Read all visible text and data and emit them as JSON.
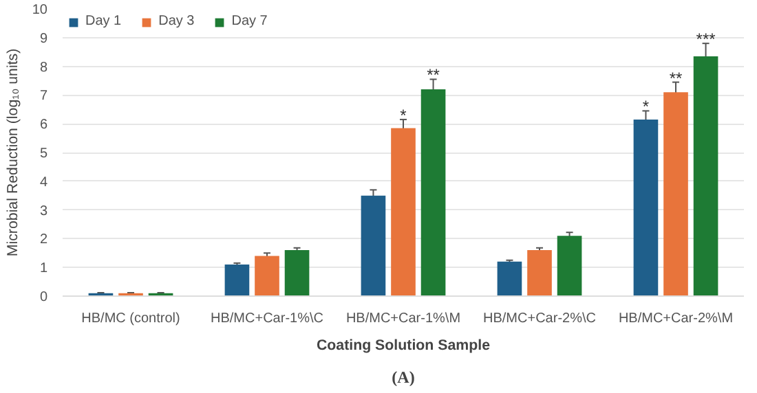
{
  "chart_data": {
    "type": "bar",
    "categories": [
      "HB/MC (control)",
      "HB/MC+Car-1%\\C",
      "HB/MC+Car-1%\\M",
      "HB/MC+Car-2%\\C",
      "HB/MC+Car-2%\\M"
    ],
    "series": [
      {
        "name": "Day 1",
        "color": "#1f5f8b",
        "values": [
          0.1,
          1.1,
          3.5,
          1.2,
          6.15
        ],
        "errors": [
          0.02,
          0.05,
          0.2,
          0.05,
          0.3
        ],
        "value_labels": [
          null,
          null,
          null,
          null,
          "*"
        ]
      },
      {
        "name": "Day 3",
        "color": "#e8743b",
        "values": [
          0.1,
          1.4,
          5.85,
          1.6,
          7.1
        ],
        "errors": [
          0.02,
          0.1,
          0.3,
          0.08,
          0.35
        ],
        "value_labels": [
          null,
          null,
          "*",
          null,
          "**"
        ]
      },
      {
        "name": "Day 7",
        "color": "#1e7b34",
        "values": [
          0.1,
          1.6,
          7.2,
          2.1,
          8.35
        ],
        "errors": [
          0.02,
          0.08,
          0.35,
          0.12,
          0.45
        ],
        "value_labels": [
          null,
          null,
          "**",
          null,
          "***"
        ]
      }
    ],
    "xlabel": "Coating Solution Sample",
    "ylabel": "Microbial Reduction (log₁₀ units)",
    "ylim": [
      0,
      10
    ],
    "yticks": [
      0,
      1,
      2,
      3,
      4,
      5,
      6,
      7,
      8,
      9,
      10
    ],
    "grid": "y",
    "legend": "top left",
    "annotations": [
      "(A)"
    ]
  }
}
